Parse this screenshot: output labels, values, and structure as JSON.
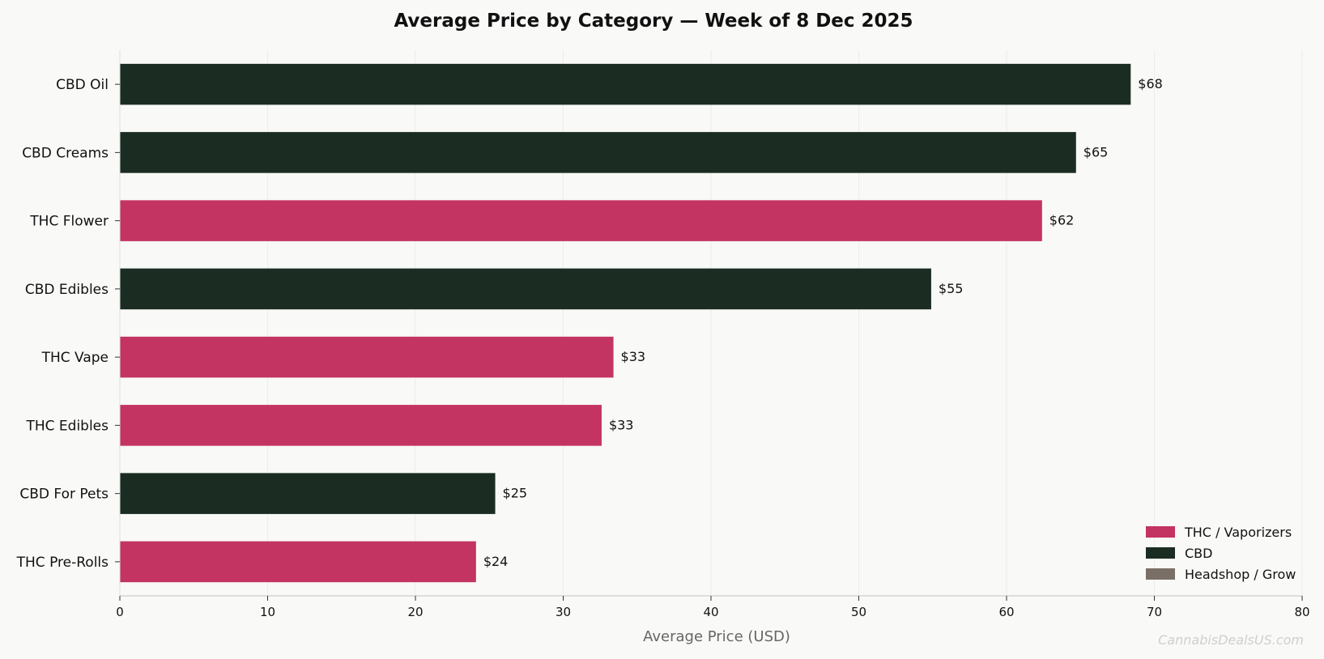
{
  "chart_data": {
    "type": "bar",
    "orientation": "horizontal",
    "title": "Average Price by Category — Week of 8 Dec 2025",
    "xlabel": "Average Price (USD)",
    "ylabel": "",
    "xlim": [
      0,
      80
    ],
    "xticks": [
      0,
      10,
      20,
      30,
      40,
      50,
      60,
      70,
      80
    ],
    "grid": "vertical",
    "categories": [
      "CBD Oil",
      "CBD Creams",
      "THC Flower",
      "CBD Edibles",
      "THC Vape",
      "THC Edibles",
      "CBD For Pets",
      "THC Pre-Rolls"
    ],
    "values": [
      68.4,
      64.7,
      62.4,
      54.9,
      33.4,
      32.6,
      25.4,
      24.1
    ],
    "value_labels": [
      "$68",
      "$65",
      "$62",
      "$55",
      "$33",
      "$33",
      "$25",
      "$24"
    ],
    "groups": [
      "CBD",
      "CBD",
      "THC / Vaporizers",
      "CBD",
      "THC / Vaporizers",
      "THC / Vaporizers",
      "CBD",
      "THC / Vaporizers"
    ],
    "legend": {
      "placement": "lower-right",
      "entries": [
        {
          "name": "THC / Vaporizers",
          "color": "#c33462"
        },
        {
          "name": "CBD",
          "color": "#1b2d22"
        },
        {
          "name": "Headshop / Grow",
          "color": "#7a6f66"
        }
      ]
    },
    "watermark": "CannabisDealsUS.com"
  }
}
